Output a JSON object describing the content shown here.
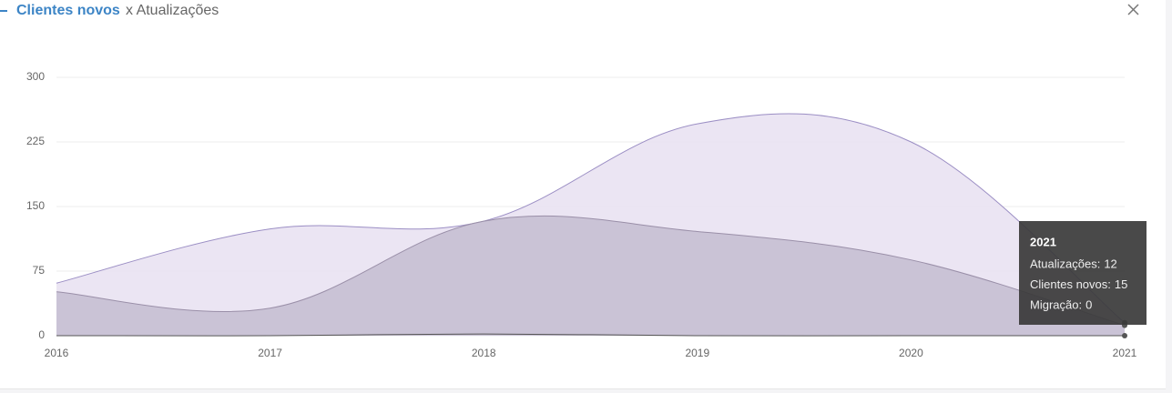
{
  "header": {
    "title_main": "Clientes novos",
    "title_rest": "x Atualizações"
  },
  "chart_data": {
    "type": "area",
    "categories": [
      "2016",
      "2017",
      "2018",
      "2019",
      "2020",
      "2021"
    ],
    "series": [
      {
        "name": "Clientes novos",
        "color": "#9b8ec4",
        "fill": "#e7e1f1",
        "values": [
          61,
          124,
          133,
          246,
          225,
          15
        ]
      },
      {
        "name": "Atualizações",
        "color": "#9a8fa8",
        "fill": "#c4bdd0",
        "values": [
          51,
          32,
          133,
          121,
          88,
          12
        ]
      },
      {
        "name": "Migração",
        "color": "#555555",
        "fill": "none",
        "values": [
          0,
          0,
          2,
          0,
          0,
          0
        ]
      }
    ],
    "ylim": [
      0,
      300
    ],
    "yticks": [
      0,
      75,
      150,
      225,
      300
    ],
    "grid": true,
    "tooltip": {
      "items": [
        {
          "label": "Atualizações:",
          "value": 12
        },
        {
          "label": "Clientes novos:",
          "value": 15
        },
        {
          "label": "Migração:",
          "value": 0
        }
      ]
    }
  }
}
